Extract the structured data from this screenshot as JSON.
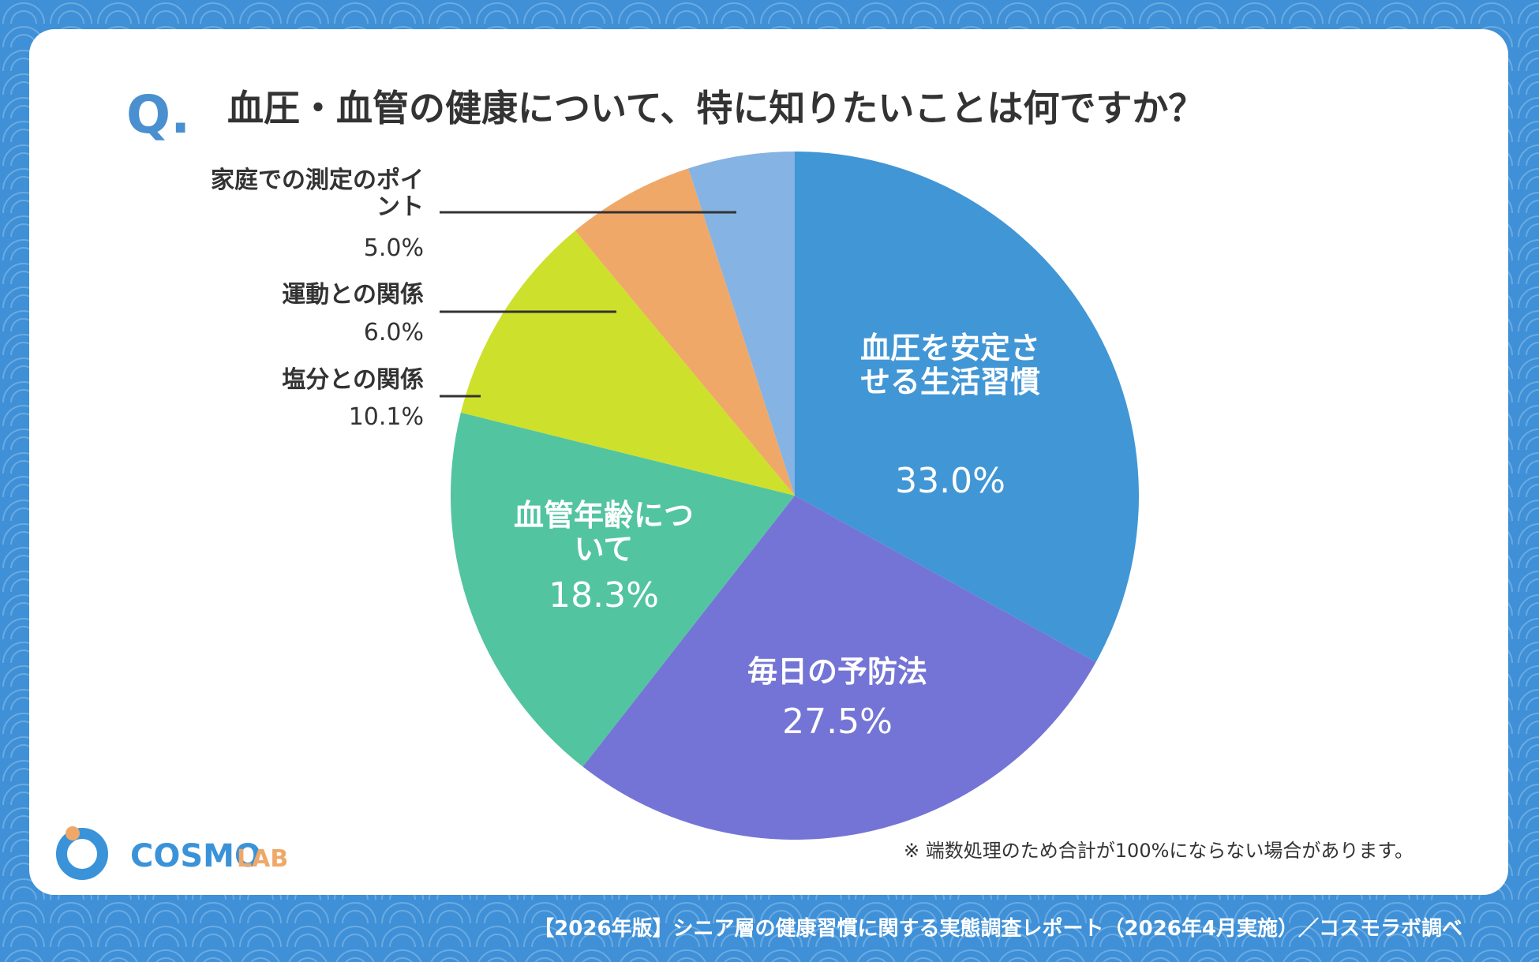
{
  "header": {
    "q": "Q.",
    "title": "血圧・血管の健康について、特に知りたいことは何ですか？"
  },
  "chart_data": {
    "type": "pie",
    "categories": [
      "血圧を安定させる生活習慣",
      "毎日の予防法",
      "血管年齢について",
      "塩分との関係",
      "運動との関係",
      "家庭での測定のポイント"
    ],
    "values": [
      33.0,
      27.5,
      18.3,
      10.1,
      6.0,
      5.0
    ],
    "value_labels": [
      "33.0%",
      "27.5%",
      "18.3%",
      "10.1%",
      "6.0%",
      "5.0%"
    ],
    "colors": [
      "#4196d6",
      "#7474d6",
      "#52c4a0",
      "#cde02c",
      "#f0a868",
      "#85b3e3"
    ]
  },
  "note": "※ 端数処理のため合計が100%にならない場合があります。",
  "logo": {
    "main": "COSMO",
    "sub": "LAB"
  },
  "footer": "【2026年版】シニア層の健康習慣に関する実態調査レポート（2026年4月実施）／コスモラボ調べ"
}
